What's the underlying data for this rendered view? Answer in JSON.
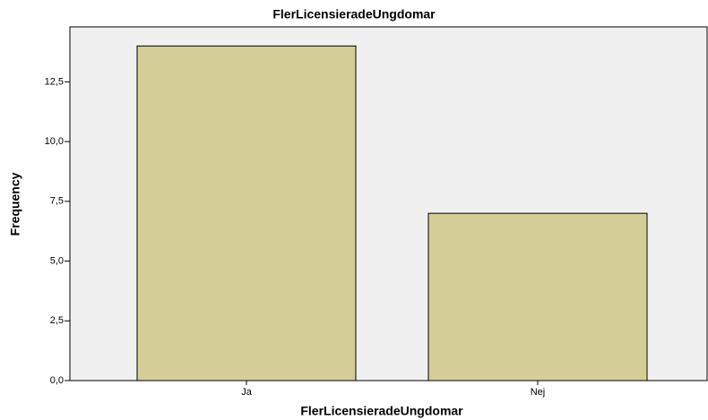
{
  "chart_data": {
    "type": "bar",
    "title": "FlerLicensieradeUngdomar",
    "x_label": "FlerLicensieradeUngdomar",
    "y_label": "Frequency",
    "categories": [
      "Ja",
      "Nej"
    ],
    "values": [
      14,
      7
    ],
    "color": "#d3ce97",
    "ylim": [
      0,
      14.8
    ],
    "yticks": [
      {
        "value": 0,
        "label": "0,0"
      },
      {
        "value": 2.5,
        "label": "2,5"
      },
      {
        "value": 5,
        "label": "5,0"
      },
      {
        "value": 7.5,
        "label": "7,5"
      },
      {
        "value": 10,
        "label": "10,0"
      },
      {
        "value": 12.5,
        "label": "12,5"
      }
    ],
    "grid": false
  }
}
